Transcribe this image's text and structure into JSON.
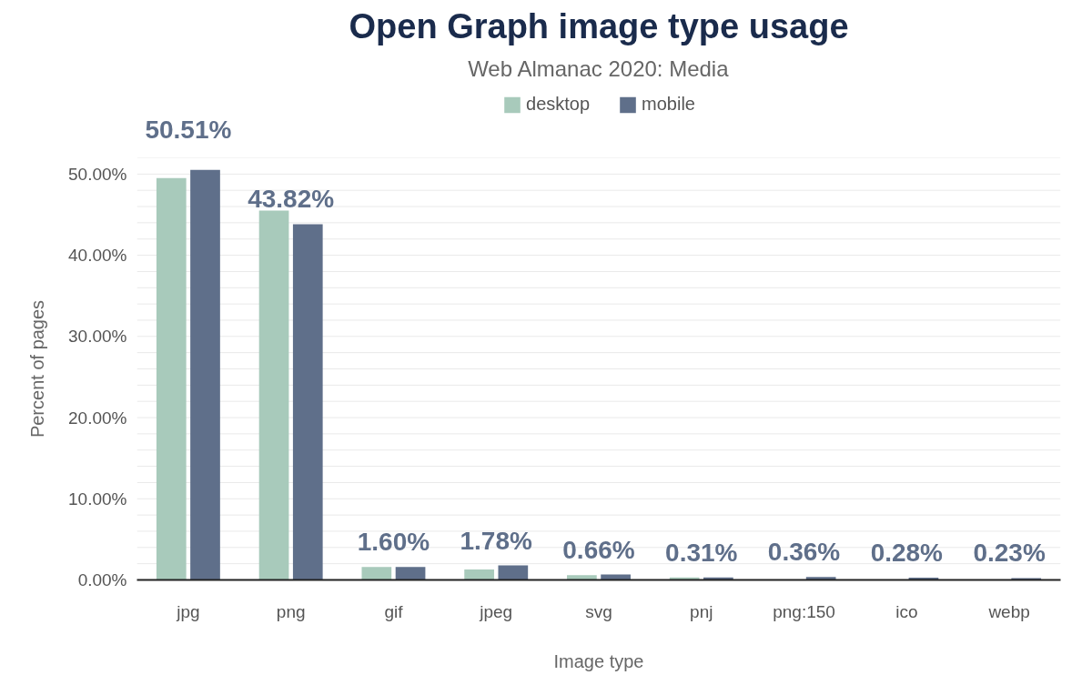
{
  "chart_data": {
    "type": "bar",
    "title": "Open Graph image type usage",
    "subtitle": "Web Almanac 2020: Media",
    "xlabel": "Image type",
    "ylabel": "Percent of pages",
    "categories": [
      "jpg",
      "png",
      "gif",
      "jpeg",
      "svg",
      "pnj",
      "png:150",
      "ico",
      "webp"
    ],
    "series": [
      {
        "name": "desktop",
        "color": "#a8cabb",
        "values": [
          49.5,
          45.5,
          1.6,
          1.3,
          0.6,
          0.3,
          0,
          0,
          0
        ]
      },
      {
        "name": "mobile",
        "color": "#5f6f8a",
        "values": [
          50.51,
          43.82,
          1.6,
          1.78,
          0.66,
          0.31,
          0.36,
          0.28,
          0.23
        ],
        "value_labels": [
          "50.51%",
          "43.82%",
          "1.60%",
          "1.78%",
          "0.66%",
          "0.31%",
          "0.36%",
          "0.28%",
          "0.23%"
        ]
      }
    ],
    "ylim": [
      0,
      52
    ],
    "yticks": [
      {
        "value": 0,
        "label": "0.00%"
      },
      {
        "value": 2,
        "label": null
      },
      {
        "value": 4,
        "label": null
      },
      {
        "value": 6,
        "label": null
      },
      {
        "value": 8,
        "label": null
      },
      {
        "value": 10,
        "label": "10.00%"
      },
      {
        "value": 12,
        "label": null
      },
      {
        "value": 14,
        "label": null
      },
      {
        "value": 16,
        "label": null
      },
      {
        "value": 18,
        "label": null
      },
      {
        "value": 20,
        "label": "20.00%"
      },
      {
        "value": 22,
        "label": null
      },
      {
        "value": 24,
        "label": null
      },
      {
        "value": 26,
        "label": null
      },
      {
        "value": 28,
        "label": null
      },
      {
        "value": 30,
        "label": "30.00%"
      },
      {
        "value": 32,
        "label": null
      },
      {
        "value": 34,
        "label": null
      },
      {
        "value": 36,
        "label": null
      },
      {
        "value": 38,
        "label": null
      },
      {
        "value": 40,
        "label": "40.00%"
      },
      {
        "value": 42,
        "label": null
      },
      {
        "value": 44,
        "label": null
      },
      {
        "value": 46,
        "label": null
      },
      {
        "value": 48,
        "label": null
      },
      {
        "value": 50,
        "label": "50.00%"
      },
      {
        "value": 52,
        "label": null
      }
    ],
    "grid": "y",
    "legend": "top"
  }
}
